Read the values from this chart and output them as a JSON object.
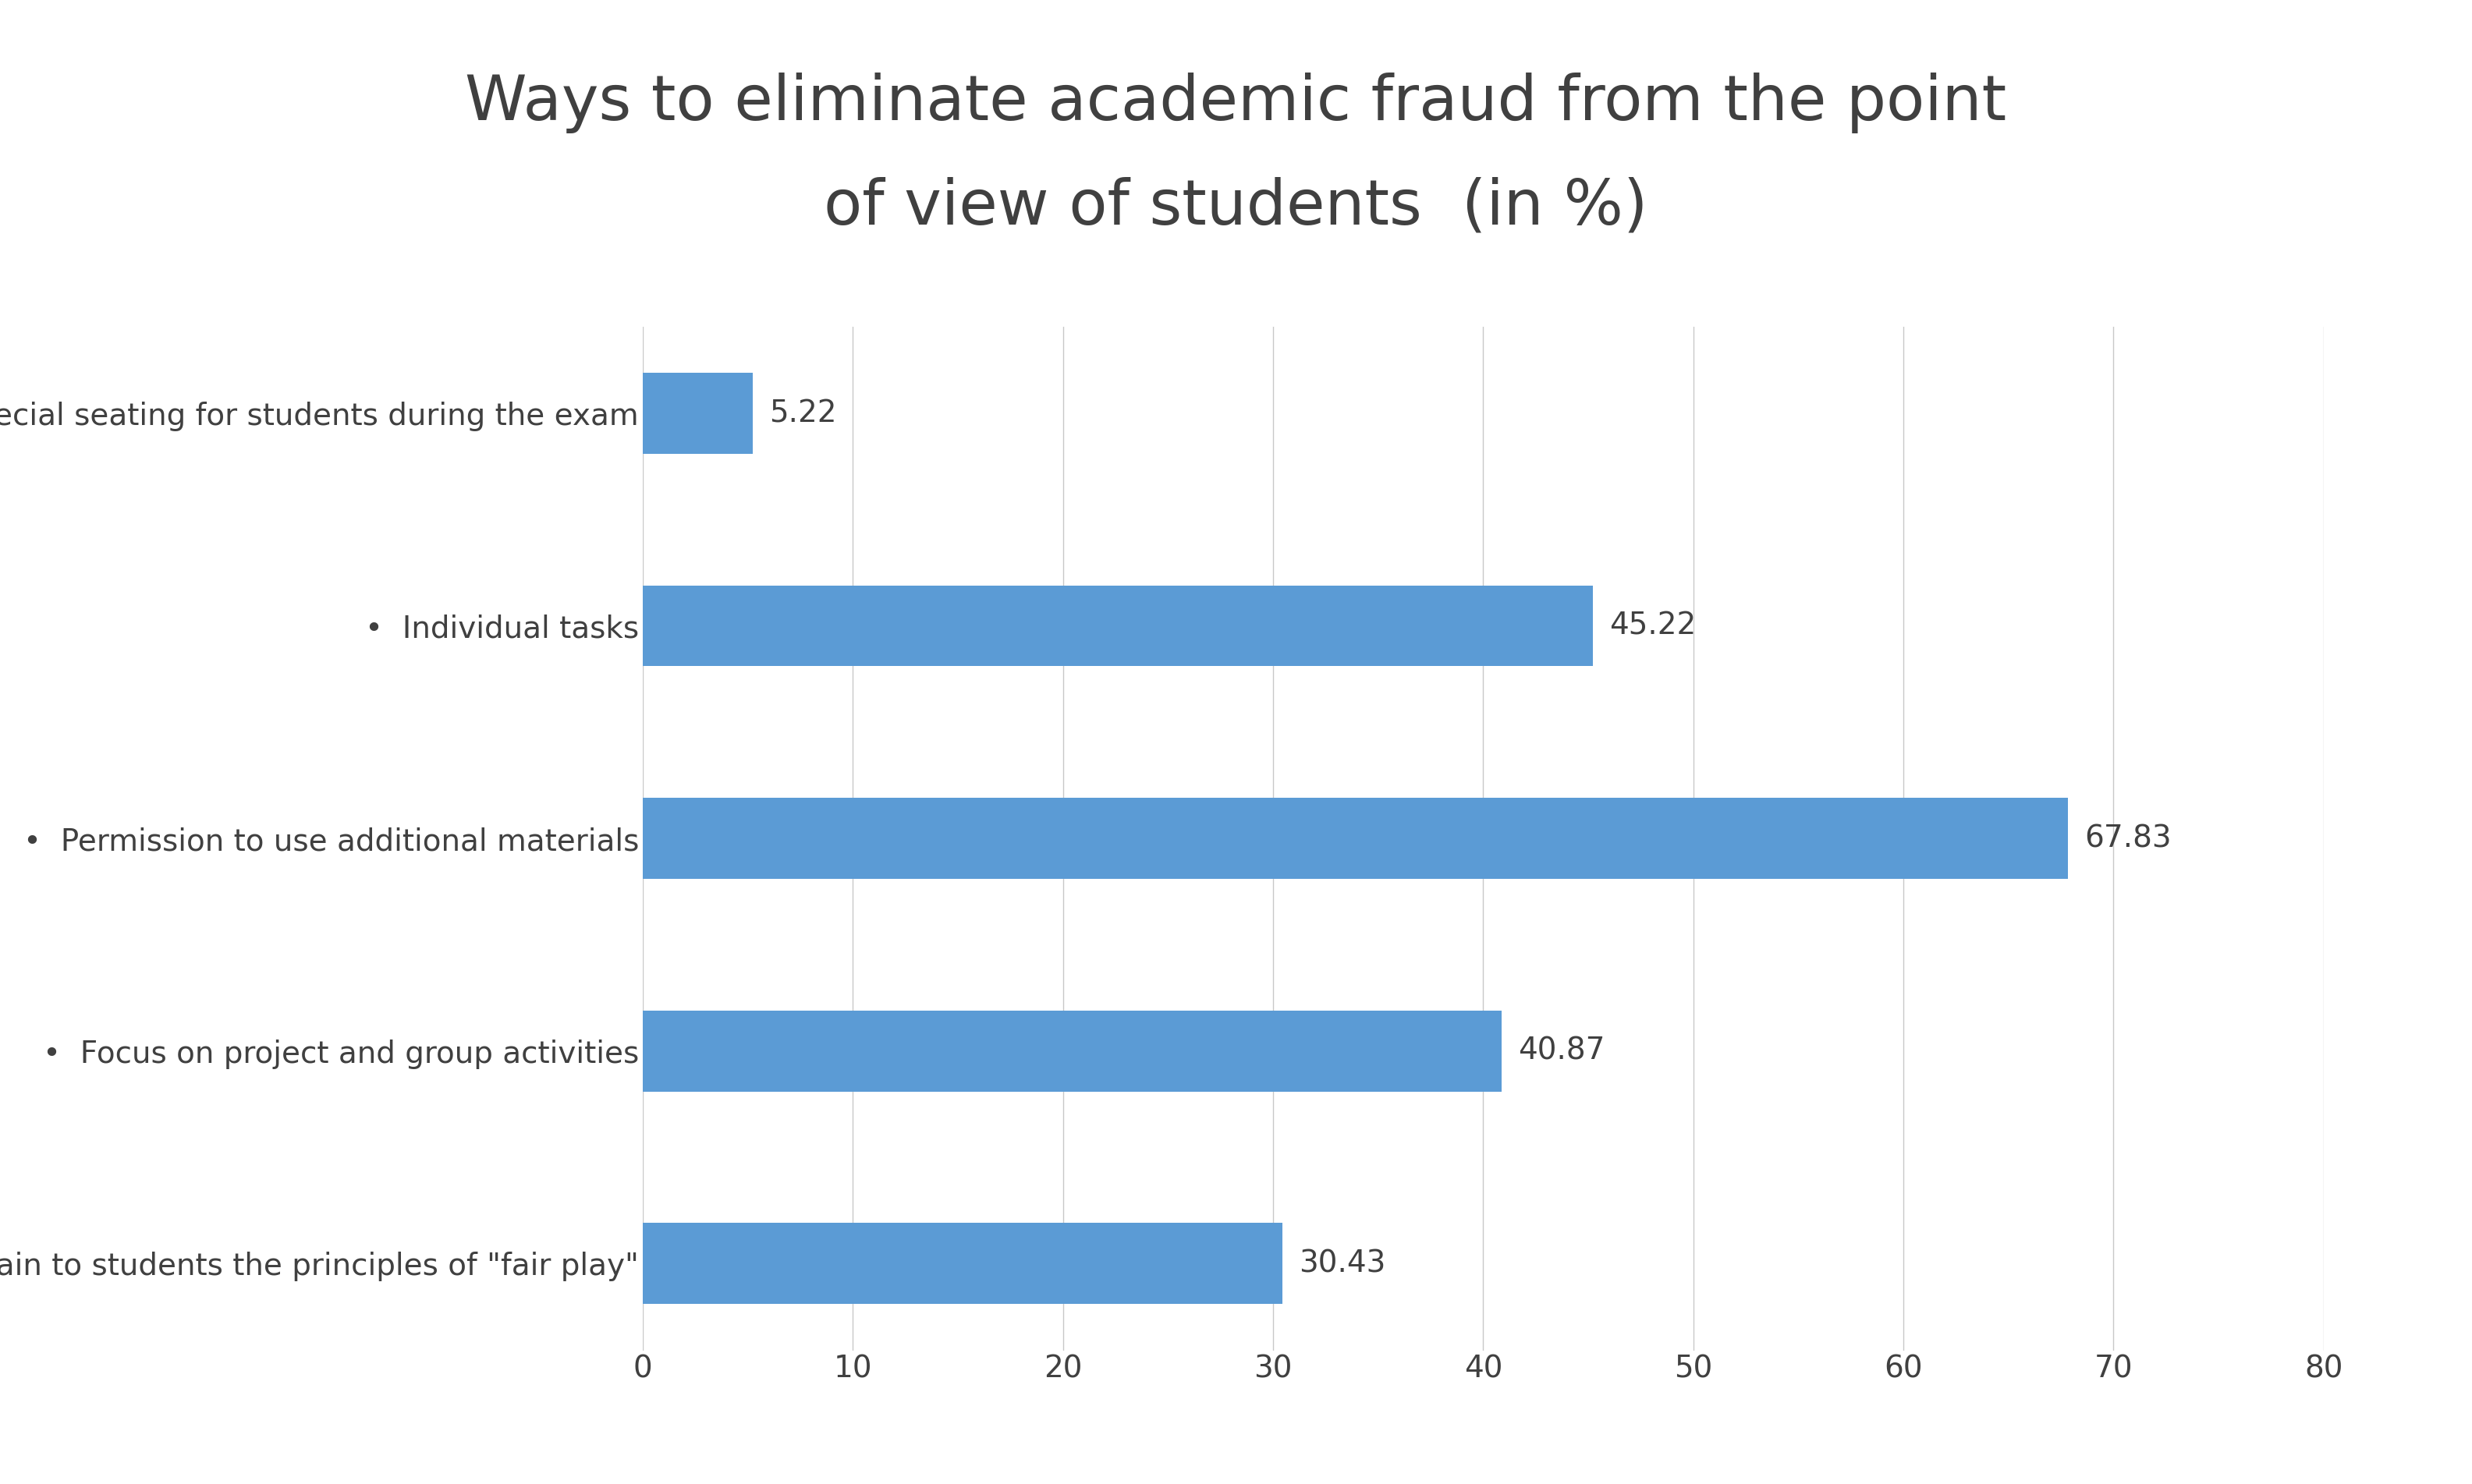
{
  "title_line1": "Ways to eliminate academic fraud from the point",
  "title_line2": "of view of students  (in %)",
  "categories": [
    "Explain to students the principles of \"fair play\"",
    "Focus on project and group activities",
    "Permission to use additional materials",
    "Individual tasks",
    "Special seating for students during the exam"
  ],
  "values": [
    30.43,
    40.87,
    67.83,
    45.22,
    5.22
  ],
  "bar_color": "#5B9BD5",
  "bar_height": 0.38,
  "xlim": [
    0,
    80
  ],
  "xticks": [
    0,
    10,
    20,
    30,
    40,
    50,
    60,
    70,
    80
  ],
  "title_fontsize": 58,
  "label_fontsize": 28,
  "tick_fontsize": 28,
  "value_fontsize": 28,
  "background_color": "#ffffff",
  "grid_color": "#c8c8c8",
  "text_color": "#404040"
}
